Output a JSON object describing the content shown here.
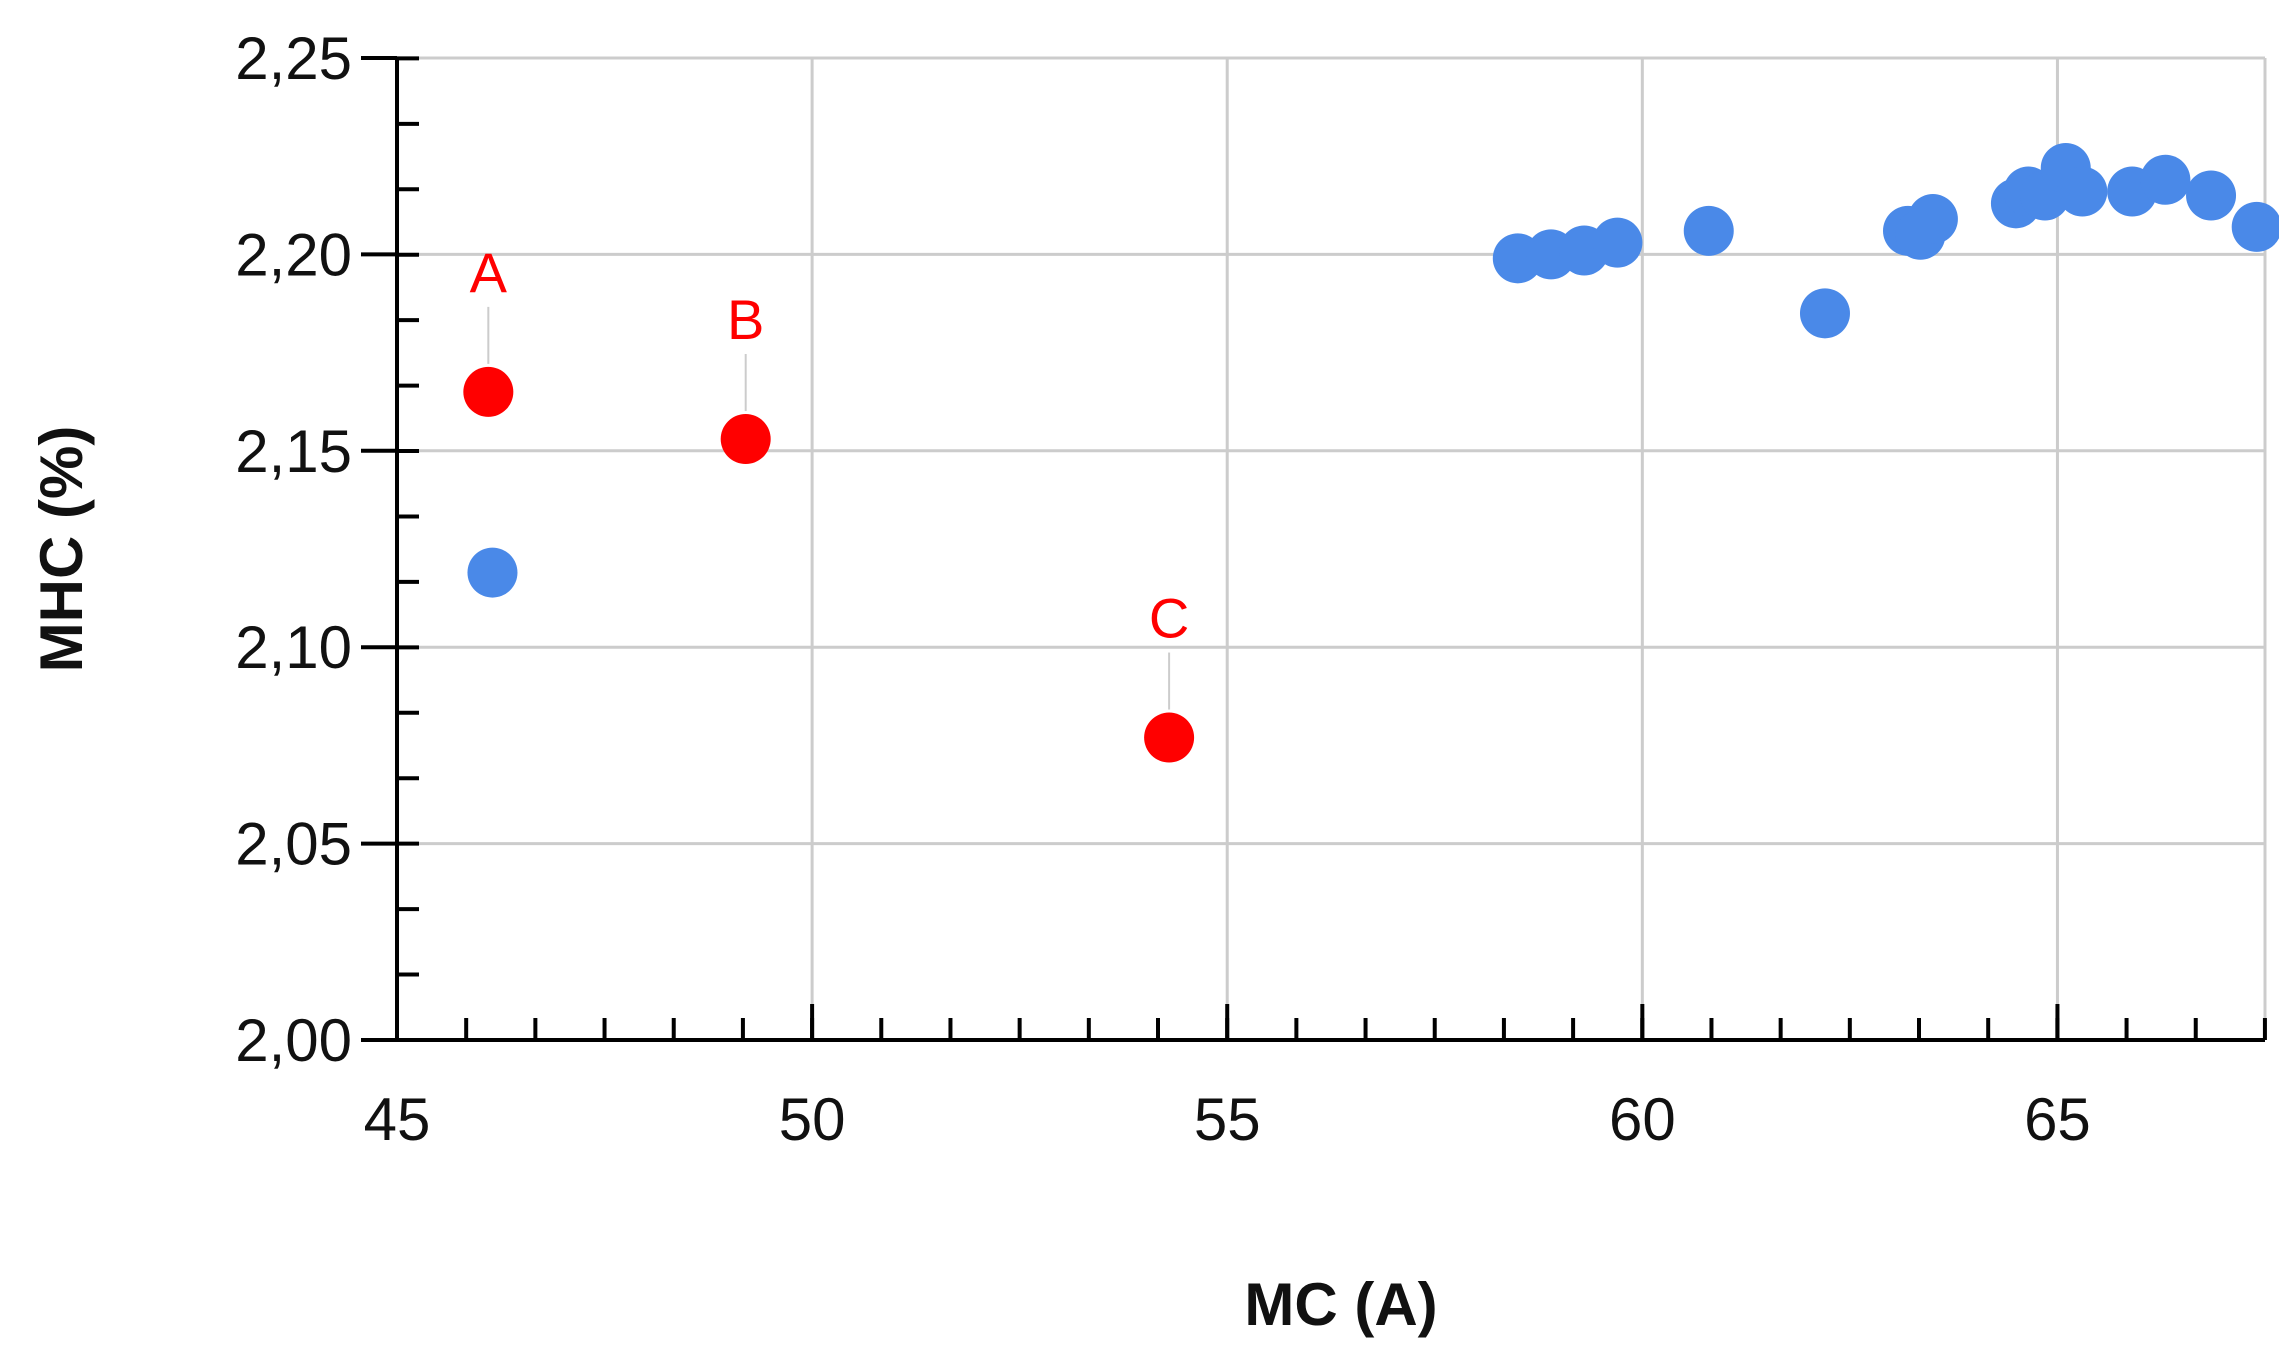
{
  "chart_data": {
    "type": "scatter",
    "title": "",
    "xlabel": "MC (A)",
    "ylabel": "MHC (%)",
    "xlim": [
      45,
      67.5
    ],
    "ylim": [
      2.0,
      2.25
    ],
    "x_ticks": [
      45,
      50,
      55,
      60,
      65
    ],
    "x_tick_labels": [
      "45",
      "50",
      "55",
      "60",
      "65"
    ],
    "y_ticks": [
      2.0,
      2.05,
      2.1,
      2.15,
      2.2,
      2.25
    ],
    "y_tick_labels": [
      "2,00",
      "2,05",
      "2,10",
      "2,15",
      "2,20",
      "2,25"
    ],
    "x_minor_step": 0.8333,
    "y_minor_step": 0.01666,
    "grid": true,
    "legend": "none",
    "colors": {
      "blue": "#4a89e8",
      "red": "#ff0000",
      "grid": "#cccccc",
      "axis": "#000000"
    },
    "series": [
      {
        "color": "#4a89e8",
        "points": [
          {
            "x": 46.15,
            "y": 2.119
          },
          {
            "x": 58.5,
            "y": 2.199
          },
          {
            "x": 58.9,
            "y": 2.2
          },
          {
            "x": 59.3,
            "y": 2.201
          },
          {
            "x": 59.7,
            "y": 2.203
          },
          {
            "x": 60.8,
            "y": 2.206
          },
          {
            "x": 62.2,
            "y": 2.185
          },
          {
            "x": 63.2,
            "y": 2.206
          },
          {
            "x": 63.35,
            "y": 2.205
          },
          {
            "x": 63.5,
            "y": 2.209
          },
          {
            "x": 64.5,
            "y": 2.213
          },
          {
            "x": 64.65,
            "y": 2.216
          },
          {
            "x": 64.85,
            "y": 2.215
          },
          {
            "x": 65.1,
            "y": 2.222
          },
          {
            "x": 65.3,
            "y": 2.216
          },
          {
            "x": 65.9,
            "y": 2.216
          },
          {
            "x": 66.3,
            "y": 2.219
          },
          {
            "x": 66.85,
            "y": 2.215
          },
          {
            "x": 67.4,
            "y": 2.207
          }
        ]
      },
      {
        "color": "#ff0000",
        "points": [
          {
            "x": 46.1,
            "y": 2.165,
            "label": "A"
          },
          {
            "x": 49.2,
            "y": 2.153,
            "label": "B"
          },
          {
            "x": 54.3,
            "y": 2.077,
            "label": "C"
          }
        ]
      }
    ]
  }
}
